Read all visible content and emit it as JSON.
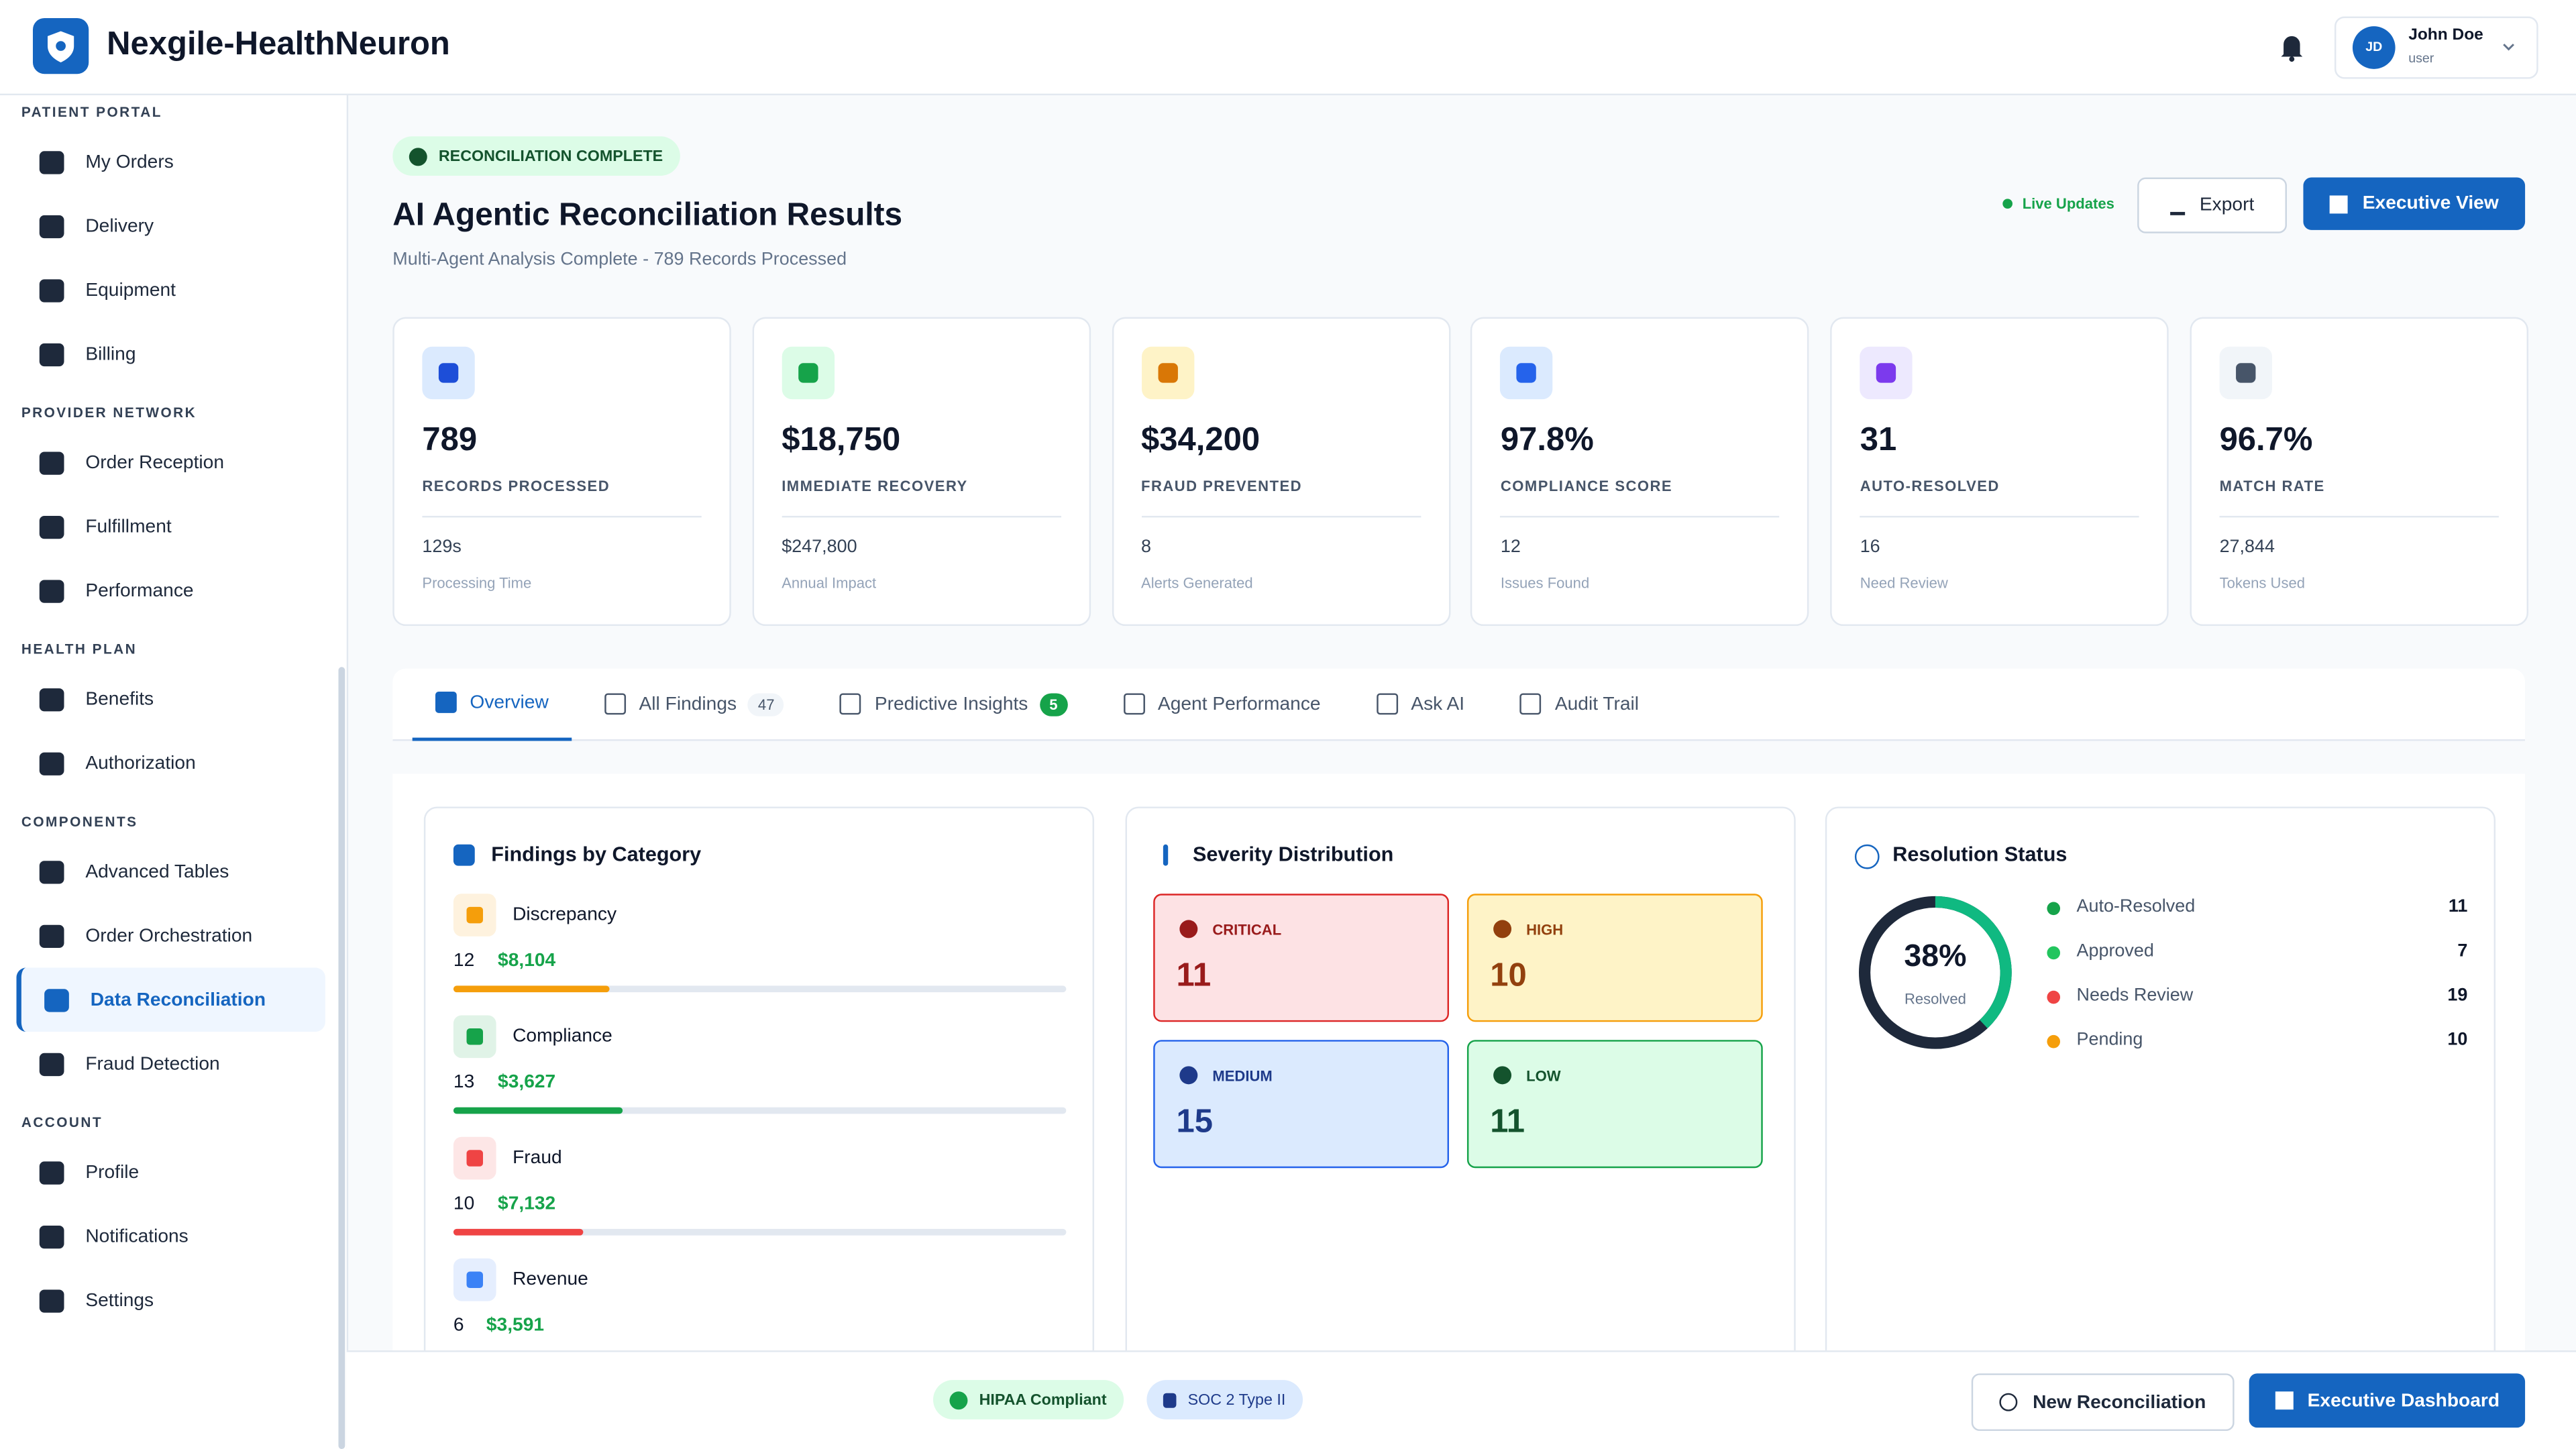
{
  "header": {
    "brand": "Nexgile-HealthNeuron",
    "user_initials": "JD",
    "user_name": "John Doe",
    "user_role": "user"
  },
  "sidebar": {
    "active_item": [
      3,
      2
    ],
    "sections": [
      {
        "title": "PATIENT PORTAL",
        "items": [
          "My Orders",
          "Delivery",
          "Equipment",
          "Billing"
        ]
      },
      {
        "title": "PROVIDER NETWORK",
        "items": [
          "Order Reception",
          "Fulfillment",
          "Performance"
        ]
      },
      {
        "title": "HEALTH PLAN",
        "items": [
          "Benefits",
          "Authorization"
        ]
      },
      {
        "title": "COMPONENTS",
        "items": [
          "Advanced Tables",
          "Order Orchestration",
          "Data Reconciliation",
          "Fraud Detection"
        ]
      },
      {
        "title": "ACCOUNT",
        "items": [
          "Profile",
          "Notifications",
          "Settings"
        ]
      }
    ]
  },
  "page": {
    "badge": "RECONCILIATION COMPLETE",
    "title": "AI Agentic Reconciliation Results",
    "subtitle": "Multi-Agent Analysis Complete - 789 Records Processed",
    "live": "Live Updates",
    "buttons": [
      "Export",
      "Executive View"
    ]
  },
  "stats": [
    {
      "value": "789",
      "label": "RECORDS PROCESSED",
      "sub_value": "129s",
      "sub_label": "Processing Time"
    },
    {
      "value": "$18,750",
      "label": "IMMEDIATE RECOVERY",
      "sub_value": "$247,800",
      "sub_label": "Annual Impact"
    },
    {
      "value": "$34,200",
      "label": "FRAUD PREVENTED",
      "sub_value": "8",
      "sub_label": "Alerts Generated"
    },
    {
      "value": "97.8%",
      "label": "COMPLIANCE SCORE",
      "sub_value": "12",
      "sub_label": "Issues Found"
    },
    {
      "value": "31",
      "label": "AUTO-RESOLVED",
      "sub_value": "16",
      "sub_label": "Need Review"
    },
    {
      "value": "96.7%",
      "label": "MATCH RATE",
      "sub_value": "27,844",
      "sub_label": "Tokens Used"
    }
  ],
  "tabs": [
    {
      "label": "Overview"
    },
    {
      "label": "All Findings",
      "count": 47
    },
    {
      "label": "Predictive Insights",
      "count": 5
    },
    {
      "label": "Agent Performance"
    },
    {
      "label": "Ask AI"
    },
    {
      "label": "Audit Trail"
    }
  ],
  "findings": {
    "title": "Findings by Category",
    "items": [
      {
        "name": "Discrepancy",
        "count": 12,
        "amount": "$8,104",
        "color": "#f59e0b"
      },
      {
        "name": "Compliance",
        "count": 13,
        "amount": "$3,627",
        "color": "#16a34a"
      },
      {
        "name": "Fraud",
        "count": 10,
        "amount": "$7,132",
        "color": "#ef4444"
      },
      {
        "name": "Revenue",
        "count": 6,
        "amount": "$3,591",
        "color": "#3b82f6"
      }
    ]
  },
  "severity": {
    "title": "Severity Distribution",
    "items": [
      {
        "label": "CRITICAL",
        "count": 11
      },
      {
        "label": "HIGH",
        "count": 10
      },
      {
        "label": "MEDIUM",
        "count": 15
      },
      {
        "label": "LOW",
        "count": 11
      }
    ]
  },
  "resolution": {
    "title": "Resolution Status",
    "percent": {
      "value": 38,
      "label": "38%"
    },
    "caption": "Resolved",
    "items": [
      {
        "label": "Auto-Resolved",
        "count": 11,
        "color": "#16a34a"
      },
      {
        "label": "Approved",
        "count": 7,
        "color": "#22c55e"
      },
      {
        "label": "Needs Review",
        "count": 19,
        "color": "#ef4444"
      },
      {
        "label": "Pending",
        "count": 10,
        "color": "#f59e0b"
      }
    ]
  },
  "footer": {
    "badges": [
      "HIPAA Compliant",
      "SOC 2 Type II"
    ],
    "buttons": [
      "New Reconciliation",
      "Executive Dashboard"
    ]
  }
}
